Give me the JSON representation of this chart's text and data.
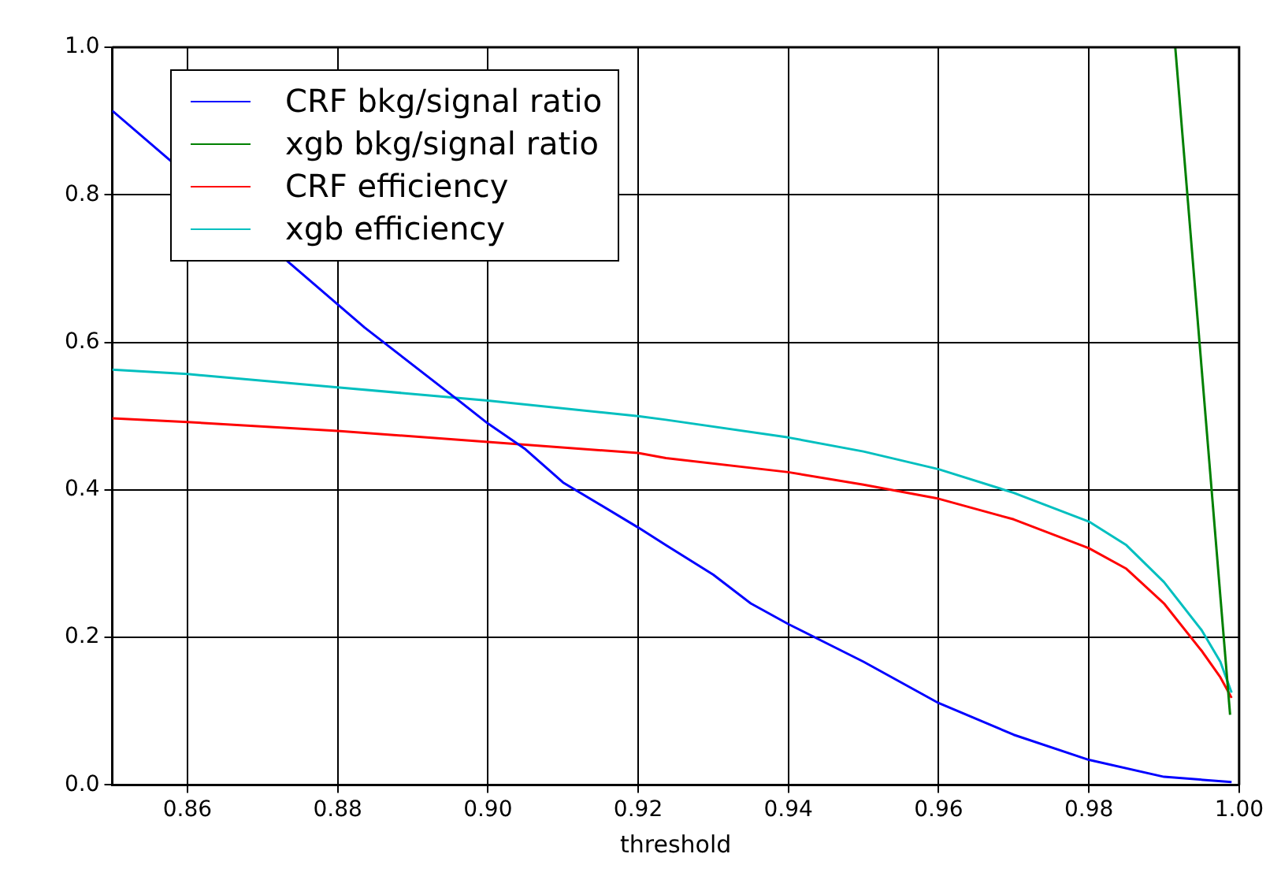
{
  "chart_data": {
    "type": "line",
    "xlabel": "threshold",
    "xlim": [
      0.85,
      1.0
    ],
    "xticks": [
      0.86,
      0.88,
      {
        "value": 0.9,
        "label": "0.90"
      },
      0.92,
      0.94,
      0.96,
      0.98,
      {
        "value": 1.0,
        "label": "1.00"
      }
    ],
    "ylim": [
      0,
      1
    ],
    "yticks": [
      {
        "value": 0,
        "label": "0.0"
      },
      0.2,
      0.4,
      0.6,
      0.8,
      {
        "value": 1,
        "label": "1.0"
      }
    ],
    "grid": true,
    "legend": "top left",
    "marker": "none",
    "line_style": "solid",
    "series": [
      {
        "name": "CRF bkg/signal ratio",
        "color": "#0000ff",
        "x": [
          0.85,
          0.8836,
          0.896,
          0.9,
          0.905,
          0.91,
          0.92,
          0.9237,
          0.93,
          0.935,
          0.94,
          0.95,
          0.96,
          0.97,
          0.98,
          0.99,
          0.999
        ],
        "values": [
          0.914,
          0.62,
          0.522,
          0.49,
          0.455,
          0.41,
          0.349,
          0.325,
          0.285,
          0.246,
          0.218,
          0.167,
          0.111,
          0.068,
          0.034,
          0.011,
          0.004
        ]
      },
      {
        "name": "xgb bkg/signal ratio",
        "color": "#008000",
        "x": [
          0.9915,
          0.9988
        ],
        "values": [
          1.0,
          0.095
        ]
      },
      {
        "name": "CRF efficiency",
        "color": "#ff0000",
        "x": [
          0.85,
          0.86,
          0.88,
          0.9,
          0.92,
          0.9237,
          0.94,
          0.95,
          0.96,
          0.97,
          0.98,
          0.985,
          0.99,
          0.995,
          0.9975,
          0.999
        ],
        "values": [
          0.497,
          0.492,
          0.48,
          0.465,
          0.45,
          0.443,
          0.424,
          0.407,
          0.388,
          0.36,
          0.321,
          0.293,
          0.246,
          0.182,
          0.146,
          0.118
        ]
      },
      {
        "name": "xgb efficiency",
        "color": "#00bfbf",
        "x": [
          0.85,
          0.86,
          0.88,
          0.9,
          0.92,
          0.9237,
          0.94,
          0.95,
          0.96,
          0.97,
          0.98,
          0.985,
          0.99,
          0.995,
          0.9975,
          0.999
        ],
        "values": [
          0.563,
          0.557,
          0.539,
          0.521,
          0.5,
          0.495,
          0.471,
          0.452,
          0.428,
          0.396,
          0.357,
          0.325,
          0.275,
          0.21,
          0.167,
          0.125
        ]
      }
    ]
  }
}
